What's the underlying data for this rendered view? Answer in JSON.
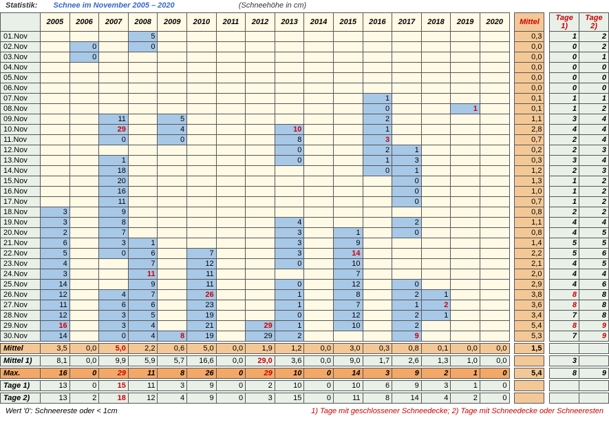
{
  "header": {
    "label": "Statistik:",
    "title": "Schnee im November 2005 – 2020",
    "subtitle": "(Schneehöhe in cm)"
  },
  "years": [
    "2005",
    "2006",
    "2007",
    "2008",
    "2009",
    "2010",
    "2011",
    "2012",
    "2013",
    "2014",
    "2015",
    "2016",
    "2017",
    "2018",
    "2019",
    "2020"
  ],
  "summaryHeaders": [
    "Mittel",
    "Tage 1)",
    "Tage 2)"
  ],
  "days": [
    {
      "d": "01.Nov",
      "v": [
        "",
        "",
        "",
        "5",
        "",
        "",
        "",
        "",
        "",
        "",
        "",
        "",
        "",
        "",
        "",
        ""
      ],
      "m": "0,3",
      "t1": "1",
      "t2": "2"
    },
    {
      "d": "02.Nov",
      "v": [
        "",
        "0",
        "",
        "0",
        "",
        "",
        "",
        "",
        "",
        "",
        "",
        "",
        "",
        "",
        "",
        ""
      ],
      "m": "0,0",
      "t1": "0",
      "t2": "2"
    },
    {
      "d": "03.Nov",
      "v": [
        "",
        "0",
        "",
        "",
        "",
        "",
        "",
        "",
        "",
        "",
        "",
        "",
        "",
        "",
        "",
        ""
      ],
      "m": "0,0",
      "t1": "0",
      "t2": "1"
    },
    {
      "d": "04.Nov",
      "v": [
        "",
        "",
        "",
        "",
        "",
        "",
        "",
        "",
        "",
        "",
        "",
        "",
        "",
        "",
        "",
        ""
      ],
      "m": "0,0",
      "t1": "0",
      "t2": "0"
    },
    {
      "d": "05.Nov",
      "v": [
        "",
        "",
        "",
        "",
        "",
        "",
        "",
        "",
        "",
        "",
        "",
        "",
        "",
        "",
        "",
        ""
      ],
      "m": "0,0",
      "t1": "0",
      "t2": "0"
    },
    {
      "d": "06.Nov",
      "v": [
        "",
        "",
        "",
        "",
        "",
        "",
        "",
        "",
        "",
        "",
        "",
        "",
        "",
        "",
        "",
        ""
      ],
      "m": "0,0",
      "t1": "0",
      "t2": "0"
    },
    {
      "d": "07.Nov",
      "v": [
        "",
        "",
        "",
        "",
        "",
        "",
        "",
        "",
        "",
        "",
        "",
        "1",
        "",
        "",
        "",
        ""
      ],
      "m": "0,1",
      "t1": "1",
      "t2": "1"
    },
    {
      "d": "08.Nov",
      "v": [
        "",
        "",
        "",
        "",
        "",
        "",
        "",
        "",
        "",
        "",
        "",
        "0",
        "",
        "",
        "1",
        ""
      ],
      "m": "0,1",
      "t1": "1",
      "t2": "2",
      "red": [
        14
      ]
    },
    {
      "d": "09.Nov",
      "v": [
        "",
        "",
        "11",
        "",
        "5",
        "",
        "",
        "",
        "",
        "",
        "",
        "2",
        "",
        "",
        "",
        ""
      ],
      "m": "1,1",
      "t1": "3",
      "t2": "4"
    },
    {
      "d": "10.Nov",
      "v": [
        "",
        "",
        "29",
        "",
        "4",
        "",
        "",
        "",
        "10",
        "",
        "",
        "1",
        "",
        "",
        "",
        ""
      ],
      "m": "2,8",
      "t1": "4",
      "t2": "4",
      "red": [
        2,
        8
      ]
    },
    {
      "d": "11.Nov",
      "v": [
        "",
        "",
        "0",
        "",
        "0",
        "",
        "",
        "",
        "8",
        "",
        "",
        "3",
        "",
        "",
        "",
        ""
      ],
      "m": "0,7",
      "t1": "2",
      "t2": "4",
      "red": [
        11
      ]
    },
    {
      "d": "12.Nov",
      "v": [
        "",
        "",
        "",
        "",
        "",
        "",
        "",
        "",
        "0",
        "",
        "",
        "2",
        "1",
        "",
        "",
        ""
      ],
      "m": "0,2",
      "t1": "2",
      "t2": "3"
    },
    {
      "d": "13.Nov",
      "v": [
        "",
        "",
        "1",
        "",
        "",
        "",
        "",
        "",
        "0",
        "",
        "",
        "1",
        "3",
        "",
        "",
        ""
      ],
      "m": "0,3",
      "t1": "3",
      "t2": "4"
    },
    {
      "d": "14.Nov",
      "v": [
        "",
        "",
        "18",
        "",
        "",
        "",
        "",
        "",
        "",
        "",
        "",
        "0",
        "1",
        "",
        "",
        ""
      ],
      "m": "1,2",
      "t1": "2",
      "t2": "3"
    },
    {
      "d": "15.Nov",
      "v": [
        "",
        "",
        "20",
        "",
        "",
        "",
        "",
        "",
        "",
        "",
        "",
        "",
        "0",
        "",
        "",
        ""
      ],
      "m": "1,3",
      "t1": "1",
      "t2": "2"
    },
    {
      "d": "16.Nov",
      "v": [
        "",
        "",
        "16",
        "",
        "",
        "",
        "",
        "",
        "",
        "",
        "",
        "",
        "0",
        "",
        "",
        ""
      ],
      "m": "1,0",
      "t1": "1",
      "t2": "2"
    },
    {
      "d": "17.Nov",
      "v": [
        "",
        "",
        "11",
        "",
        "",
        "",
        "",
        "",
        "",
        "",
        "",
        "",
        "0",
        "",
        "",
        ""
      ],
      "m": "0,7",
      "t1": "1",
      "t2": "2"
    },
    {
      "d": "18.Nov",
      "v": [
        "3",
        "",
        "9",
        "",
        "",
        "",
        "",
        "",
        "",
        "",
        "",
        "",
        "",
        "",
        "",
        ""
      ],
      "m": "0,8",
      "t1": "2",
      "t2": "2"
    },
    {
      "d": "19.Nov",
      "v": [
        "3",
        "",
        "8",
        "",
        "",
        "",
        "",
        "",
        "4",
        "",
        "",
        "",
        "2",
        "",
        "",
        ""
      ],
      "m": "1,1",
      "t1": "4",
      "t2": "4"
    },
    {
      "d": "20.Nov",
      "v": [
        "2",
        "",
        "7",
        "",
        "",
        "",
        "",
        "",
        "3",
        "",
        "1",
        "",
        "0",
        "",
        "",
        ""
      ],
      "m": "0,8",
      "t1": "4",
      "t2": "5"
    },
    {
      "d": "21.Nov",
      "v": [
        "6",
        "",
        "3",
        "1",
        "",
        "",
        "",
        "",
        "3",
        "",
        "9",
        "",
        "",
        "",
        "",
        ""
      ],
      "m": "1,4",
      "t1": "5",
      "t2": "5"
    },
    {
      "d": "22.Nov",
      "v": [
        "5",
        "",
        "0",
        "6",
        "",
        "7",
        "",
        "",
        "3",
        "",
        "14",
        "",
        "",
        "",
        "",
        ""
      ],
      "m": "2,2",
      "t1": "5",
      "t2": "6",
      "red": [
        10
      ]
    },
    {
      "d": "23.Nov",
      "v": [
        "4",
        "",
        "",
        "7",
        "",
        "12",
        "",
        "",
        "0",
        "",
        "10",
        "",
        "",
        "",
        "",
        ""
      ],
      "m": "2,1",
      "t1": "4",
      "t2": "5"
    },
    {
      "d": "24.Nov",
      "v": [
        "3",
        "",
        "",
        "11",
        "",
        "11",
        "",
        "",
        "",
        "",
        "7",
        "",
        "",
        "",
        "",
        ""
      ],
      "m": "2,0",
      "t1": "4",
      "t2": "4",
      "red": [
        3
      ]
    },
    {
      "d": "25.Nov",
      "v": [
        "14",
        "",
        "",
        "9",
        "",
        "11",
        "",
        "",
        "0",
        "",
        "12",
        "",
        "0",
        "",
        "",
        ""
      ],
      "m": "2,9",
      "t1": "4",
      "t2": "6"
    },
    {
      "d": "26.Nov",
      "v": [
        "12",
        "",
        "4",
        "7",
        "",
        "26",
        "",
        "",
        "1",
        "",
        "8",
        "",
        "2",
        "1",
        "",
        ""
      ],
      "m": "3,8",
      "t1": "8",
      "t2": "8",
      "red": [
        5
      ],
      "t1red": true
    },
    {
      "d": "27.Nov",
      "v": [
        "11",
        "",
        "6",
        "6",
        "",
        "23",
        "",
        "",
        "1",
        "",
        "7",
        "",
        "1",
        "2",
        "",
        ""
      ],
      "m": "3,6",
      "t1": "8",
      "t2": "8",
      "red": [
        13
      ],
      "t1red": true
    },
    {
      "d": "28.Nov",
      "v": [
        "12",
        "",
        "3",
        "5",
        "",
        "19",
        "",
        "",
        "0",
        "",
        "12",
        "",
        "2",
        "1",
        "",
        ""
      ],
      "m": "3,4",
      "t1": "7",
      "t2": "8"
    },
    {
      "d": "29.Nov",
      "v": [
        "16",
        "",
        "3",
        "4",
        "",
        "21",
        "",
        "29",
        "1",
        "",
        "10",
        "",
        "2",
        "",
        "",
        ""
      ],
      "m": "5,4",
      "t1": "8",
      "t2": "9",
      "red": [
        0,
        7
      ],
      "t1red": true,
      "t2red": true
    },
    {
      "d": "30.Nov",
      "v": [
        "14",
        "",
        "0",
        "4",
        "8",
        "19",
        "",
        "29",
        "2",
        "",
        "",
        "",
        "9",
        "",
        "",
        ""
      ],
      "m": "5,3",
      "t1": "7",
      "t2": "9",
      "red": [
        4,
        12
      ],
      "t2red": true
    }
  ],
  "summary": [
    {
      "label": "Mittel",
      "cls": "mit",
      "v": [
        "3,5",
        "0,0",
        "5,0",
        "2,2",
        "0,6",
        "5,0",
        "0,0",
        "1,9",
        "1,2",
        "0,0",
        "3,0",
        "0,3",
        "0,8",
        "0,1",
        "0,0",
        "0,0"
      ],
      "m": "1,5",
      "t1": "",
      "t2": "",
      "red": [
        2
      ]
    },
    {
      "label": "Mittel 1)",
      "cls": "mit1",
      "v": [
        "8,1",
        "0,0",
        "9,9",
        "5,9",
        "5,7",
        "16,6",
        "0,0",
        "29,0",
        "3,6",
        "0,0",
        "9,0",
        "1,7",
        "2,6",
        "1,3",
        "1,0",
        "0,0"
      ],
      "m": "",
      "t1": "3",
      "t2": "",
      "red": [
        7
      ]
    },
    {
      "label": "Max.",
      "cls": "max",
      "v": [
        "16",
        "0",
        "29",
        "11",
        "8",
        "26",
        "0",
        "29",
        "10",
        "0",
        "14",
        "3",
        "9",
        "2",
        "1",
        "0"
      ],
      "m": "5,4",
      "t1": "8",
      "t2": "9",
      "red": [
        2,
        7
      ],
      "it": true
    },
    {
      "label": "Tage 1)",
      "cls": "tg",
      "v": [
        "13",
        "0",
        "15",
        "11",
        "3",
        "9",
        "0",
        "2",
        "10",
        "0",
        "10",
        "6",
        "9",
        "3",
        "1",
        "0"
      ],
      "m": "",
      "t1": "",
      "t2": "",
      "red": [
        2
      ]
    },
    {
      "label": "Tage 2)",
      "cls": "tg",
      "v": [
        "13",
        "2",
        "18",
        "12",
        "4",
        "9",
        "0",
        "3",
        "15",
        "0",
        "11",
        "8",
        "14",
        "4",
        "2",
        "0"
      ],
      "m": "",
      "t1": "",
      "t2": "",
      "red": [
        2
      ]
    }
  ],
  "footnote": {
    "left": "Wert '0': Schneereste oder < 1cm",
    "right": "1) Tage mit geschlossener Schneedecke;  2) Tage mit Schneedecke oder Schneeresten"
  }
}
